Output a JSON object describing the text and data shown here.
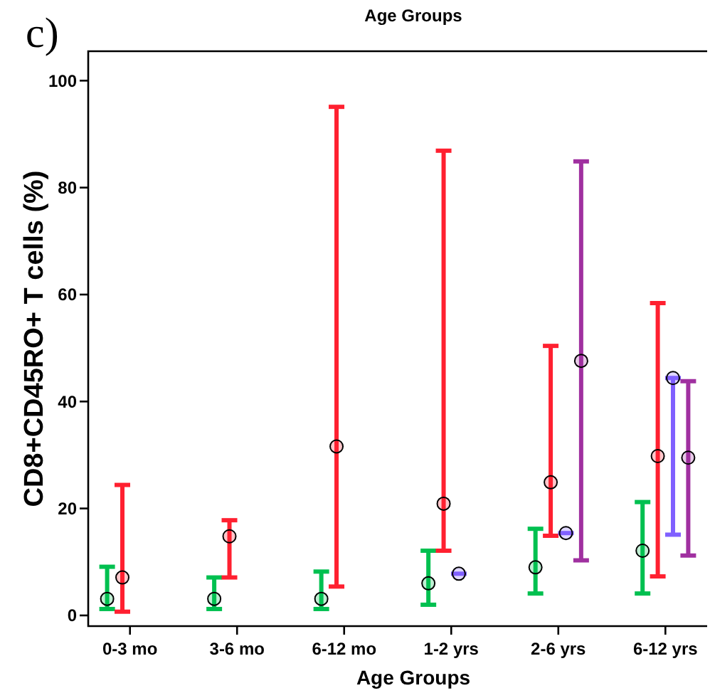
{
  "chart_data": {
    "type": "scatter",
    "title": "Age Groups",
    "xlabel": "Age Groups",
    "ylabel": "CD8+CD45RO+ T cells (%)",
    "annotations": [
      "c)"
    ],
    "categories": [
      "0-3 mo",
      "3-6 mo",
      "6-12 mo",
      "1-2 yrs",
      "2-6 yrs",
      "6-12 yrs"
    ],
    "ylim": [
      -2,
      105.5
    ],
    "yticks": [
      0,
      20,
      40,
      60,
      80,
      100
    ],
    "grid": false,
    "marker": "circle",
    "series": [
      {
        "color": "#00c050",
        "values": [
          3.1,
          3.1,
          3.1,
          6.0,
          9.0,
          12.1
        ],
        "errors": [
          [
            1.2,
            9.1
          ],
          [
            1.2,
            7.1
          ],
          [
            1.2,
            8.2
          ],
          [
            2.0,
            12.1
          ],
          [
            4.1,
            16.2
          ],
          [
            4.1,
            21.2
          ]
        ]
      },
      {
        "color": "#ff2030",
        "values": [
          7.1,
          14.8,
          31.6,
          20.9,
          24.9,
          29.8
        ],
        "errors": [
          [
            0.7,
            24.4
          ],
          [
            7.1,
            17.8
          ],
          [
            5.4,
            95.1
          ],
          [
            12.1,
            86.9
          ],
          [
            14.9,
            50.4
          ],
          [
            7.3,
            58.4
          ]
        ]
      },
      {
        "color": "#8060ff",
        "values": [
          null,
          null,
          null,
          7.8,
          15.4,
          44.4
        ],
        "errors": [
          null,
          null,
          null,
          null,
          null,
          [
            15.1,
            44.4
          ]
        ]
      },
      {
        "color": "#a030a0",
        "values": [
          null,
          null,
          null,
          null,
          47.6,
          29.5
        ],
        "errors": [
          null,
          null,
          null,
          null,
          [
            10.3,
            84.9
          ],
          [
            11.2,
            43.8
          ]
        ]
      }
    ]
  }
}
